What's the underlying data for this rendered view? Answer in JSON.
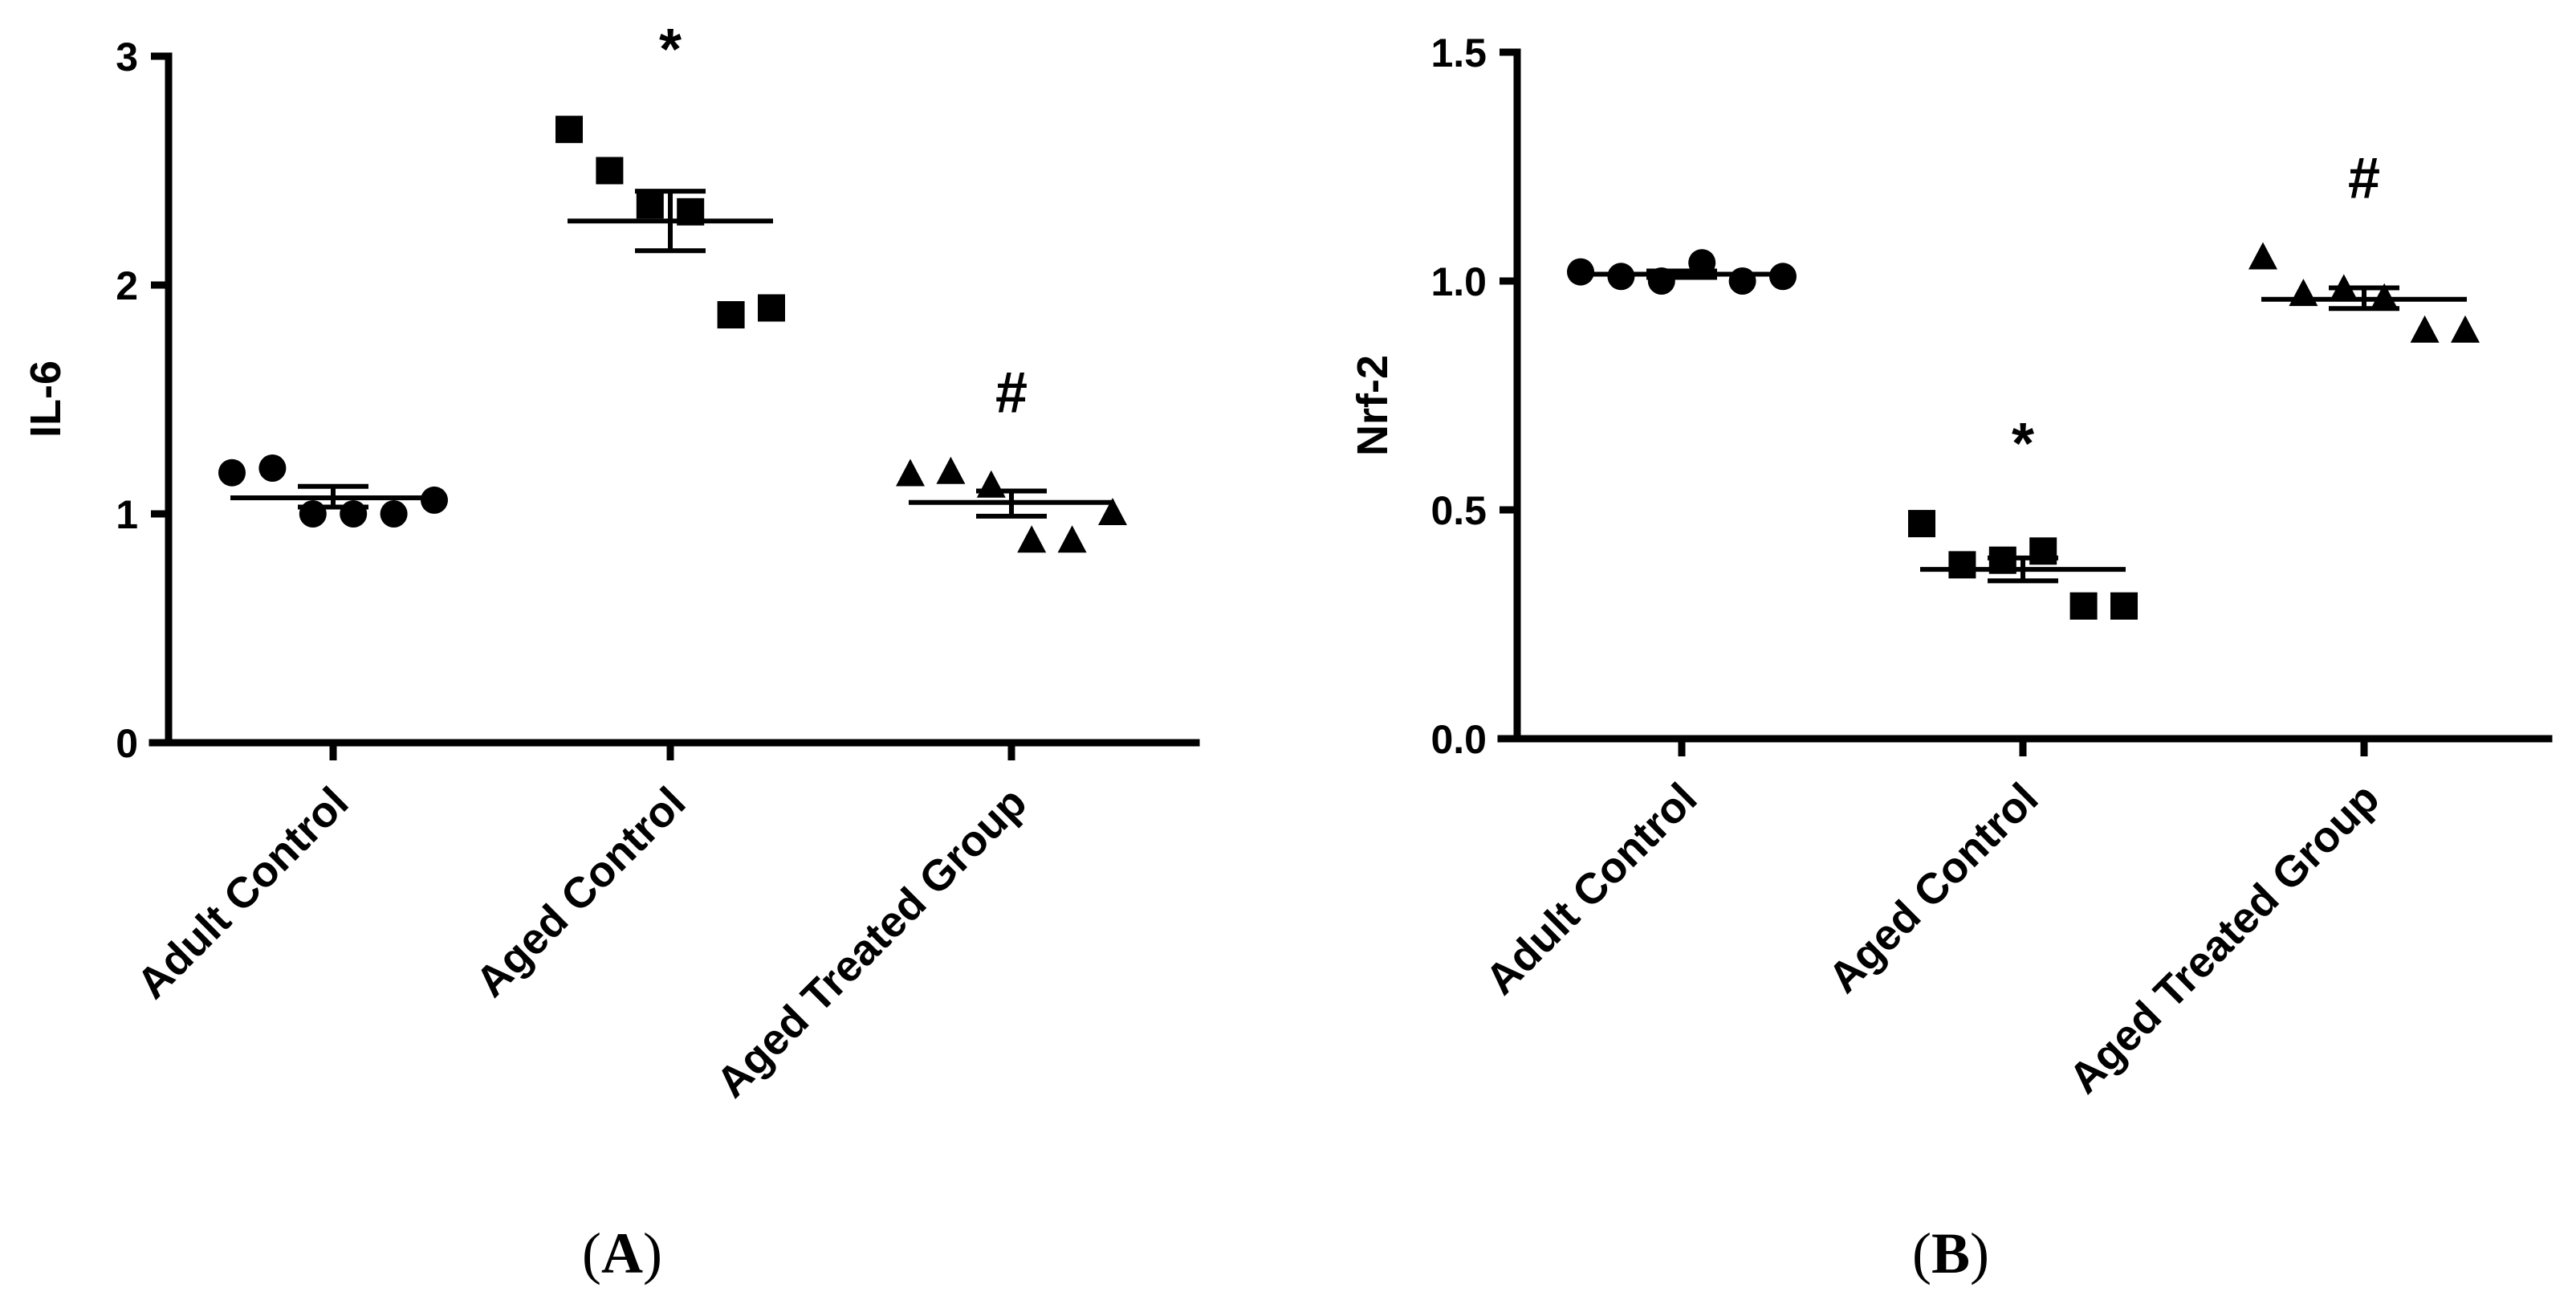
{
  "chart_data": [
    {
      "type": "scatter",
      "panel_label": "A",
      "ylabel": "IL-6",
      "ylim": [
        0,
        3
      ],
      "yticks": [
        0,
        1,
        2,
        3
      ],
      "categories": [
        "Adult Control",
        "Aged Control",
        "Aged Treated Group"
      ],
      "markers": [
        "circle",
        "square",
        "triangle"
      ],
      "series": [
        {
          "name": "Adult Control",
          "values": [
            1.18,
            1.2,
            1.0,
            1.0,
            1.0,
            1.06
          ],
          "mean": 1.07,
          "sem_low": 1.03,
          "sem_high": 1.12,
          "annotation": ""
        },
        {
          "name": "Aged Control",
          "values": [
            2.68,
            2.5,
            2.35,
            2.32,
            1.87,
            1.9
          ],
          "mean": 2.28,
          "sem_low": 2.15,
          "sem_high": 2.41,
          "annotation": "*"
        },
        {
          "name": "Aged Treated Group",
          "values": [
            1.17,
            1.18,
            1.12,
            0.88,
            0.88,
            1.0
          ],
          "mean": 1.05,
          "sem_low": 0.99,
          "sem_high": 1.1,
          "annotation": "#"
        }
      ]
    },
    {
      "type": "scatter",
      "panel_label": "B",
      "ylabel": "Nrf-2",
      "ylim": [
        0,
        1.5
      ],
      "yticks": [
        0.0,
        0.5,
        1.0,
        1.5
      ],
      "ytick_labels": [
        "0.0",
        "0.5",
        "1.0",
        "1.5"
      ],
      "categories": [
        "Adult Control",
        "Aged Control",
        "Aged Treated Group"
      ],
      "markers": [
        "circle",
        "square",
        "triangle"
      ],
      "series": [
        {
          "name": "Adult Control",
          "values": [
            1.02,
            1.01,
            1.0,
            1.04,
            1.0,
            1.01
          ],
          "mean": 1.015,
          "sem_low": 1.008,
          "sem_high": 1.022,
          "annotation": ""
        },
        {
          "name": "Aged Control",
          "values": [
            0.47,
            0.38,
            0.39,
            0.41,
            0.29,
            0.29
          ],
          "mean": 0.37,
          "sem_low": 0.345,
          "sem_high": 0.395,
          "annotation": "*"
        },
        {
          "name": "Aged Treated Group",
          "values": [
            1.05,
            0.97,
            0.98,
            0.96,
            0.89,
            0.89
          ],
          "mean": 0.96,
          "sem_low": 0.94,
          "sem_high": 0.985,
          "annotation": "#"
        }
      ]
    }
  ]
}
